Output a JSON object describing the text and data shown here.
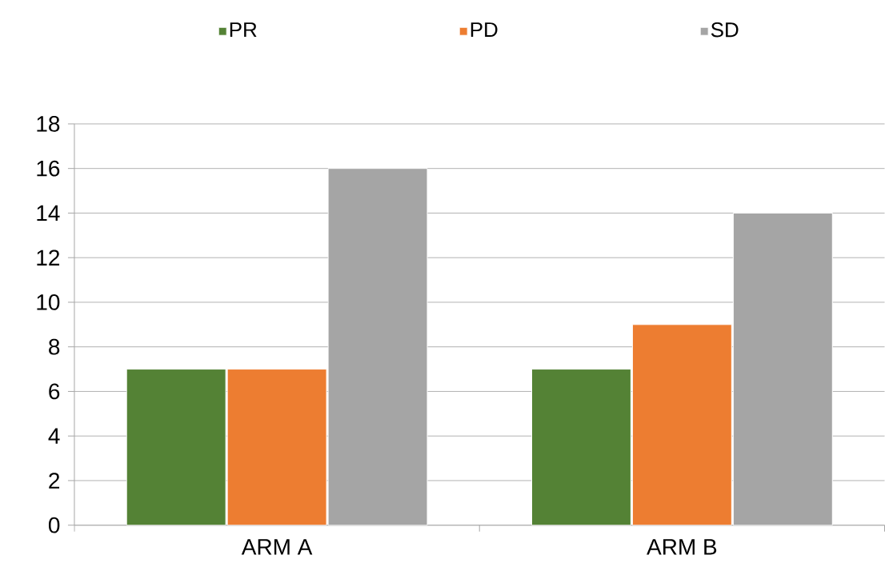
{
  "chart_data": {
    "type": "bar",
    "categories": [
      "ARM A",
      "ARM B"
    ],
    "series": [
      {
        "name": "PR",
        "color": "#548235",
        "values": [
          7,
          7
        ]
      },
      {
        "name": "PD",
        "color": "#ed7d31",
        "values": [
          7,
          9
        ]
      },
      {
        "name": "SD",
        "color": "#a5a5a5",
        "values": [
          16,
          14
        ]
      }
    ],
    "ylim": [
      0,
      18
    ],
    "yticks": [
      0,
      2,
      4,
      6,
      8,
      10,
      12,
      14,
      16,
      18
    ],
    "grid": "y",
    "legend": "top"
  }
}
